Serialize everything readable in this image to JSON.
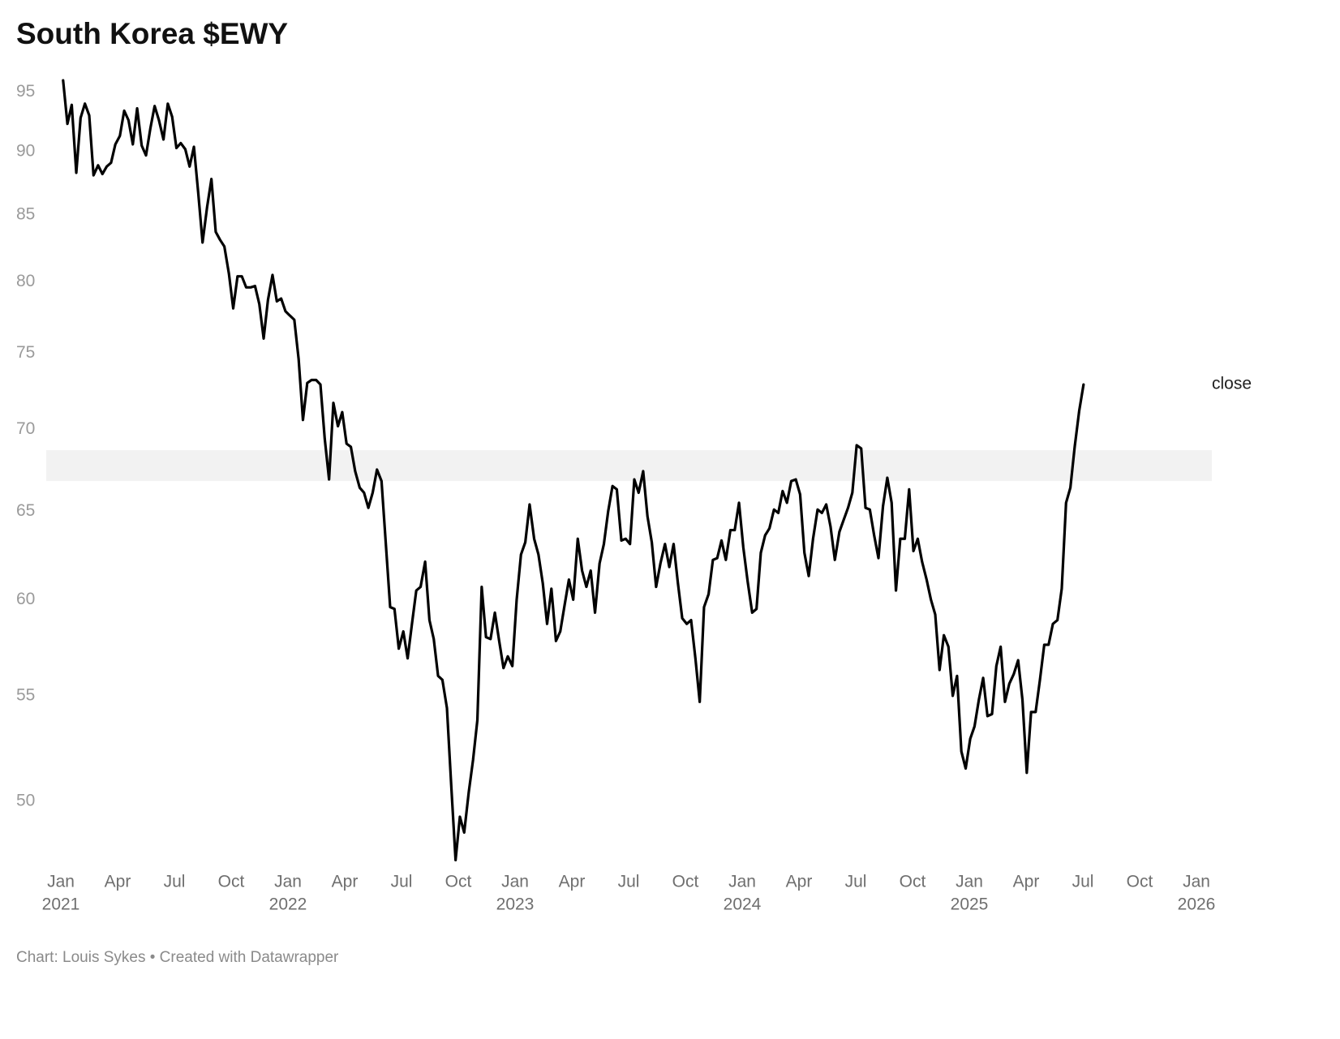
{
  "chart_data": {
    "type": "line",
    "title": "South Korea $EWY",
    "source": "Chart: Louis Sykes • Created with Datawrapper",
    "log_scale_y": true,
    "grid": false,
    "ylim": [
      47,
      97
    ],
    "yticks": [
      50,
      55,
      60,
      65,
      70,
      75,
      80,
      85,
      90,
      95
    ],
    "xlim": [
      2021,
      2026
    ],
    "xticks": [
      {
        "value": 2021,
        "label": "Jan",
        "year": "2021"
      },
      {
        "value": 2021.25,
        "label": "Apr"
      },
      {
        "value": 2021.5,
        "label": "Jul"
      },
      {
        "value": 2021.75,
        "label": "Oct"
      },
      {
        "value": 2022,
        "label": "Jan",
        "year": "2022"
      },
      {
        "value": 2022.25,
        "label": "Apr"
      },
      {
        "value": 2022.5,
        "label": "Jul"
      },
      {
        "value": 2022.75,
        "label": "Oct"
      },
      {
        "value": 2023,
        "label": "Jan",
        "year": "2023"
      },
      {
        "value": 2023.25,
        "label": "Apr"
      },
      {
        "value": 2023.5,
        "label": "Jul"
      },
      {
        "value": 2023.75,
        "label": "Oct"
      },
      {
        "value": 2024,
        "label": "Jan",
        "year": "2024"
      },
      {
        "value": 2024.25,
        "label": "Apr"
      },
      {
        "value": 2024.5,
        "label": "Jul"
      },
      {
        "value": 2024.75,
        "label": "Oct"
      },
      {
        "value": 2025,
        "label": "Jan",
        "year": "2025"
      },
      {
        "value": 2025.25,
        "label": "Apr"
      },
      {
        "value": 2025.5,
        "label": "Jul"
      },
      {
        "value": 2025.75,
        "label": "Oct"
      },
      {
        "value": 2026,
        "label": "Jan",
        "year": "2026"
      }
    ],
    "highlight_band": [
      66.8,
      68.7
    ],
    "highlight_color": "#f2f2f2",
    "x": [
      2021.01,
      2021.029,
      2021.048,
      2021.068,
      2021.087,
      2021.106,
      2021.125,
      2021.144,
      2021.164,
      2021.183,
      2021.202,
      2021.221,
      2021.24,
      2021.26,
      2021.279,
      2021.298,
      2021.317,
      2021.336,
      2021.356,
      2021.375,
      2021.394,
      2021.413,
      2021.432,
      2021.452,
      2021.471,
      2021.49,
      2021.509,
      2021.528,
      2021.548,
      2021.567,
      2021.586,
      2021.605,
      2021.624,
      2021.644,
      2021.663,
      2021.682,
      2021.701,
      2021.72,
      2021.74,
      2021.759,
      2021.778,
      2021.797,
      2021.816,
      2021.836,
      2021.855,
      2021.874,
      2021.893,
      2021.912,
      2021.932,
      2021.951,
      2021.97,
      2021.989,
      2022.008,
      2022.028,
      2022.047,
      2022.066,
      2022.085,
      2022.104,
      2022.124,
      2022.143,
      2022.162,
      2022.181,
      2022.2,
      2022.22,
      2022.239,
      2022.258,
      2022.277,
      2022.296,
      2022.316,
      2022.335,
      2022.354,
      2022.373,
      2022.392,
      2022.412,
      2022.431,
      2022.45,
      2022.469,
      2022.488,
      2022.508,
      2022.527,
      2022.546,
      2022.565,
      2022.584,
      2022.604,
      2022.623,
      2022.642,
      2022.661,
      2022.68,
      2022.7,
      2022.719,
      2022.738,
      2022.757,
      2022.776,
      2022.796,
      2022.815,
      2022.834,
      2022.853,
      2022.872,
      2022.892,
      2022.911,
      2022.93,
      2022.949,
      2022.968,
      2022.988,
      2023.007,
      2023.026,
      2023.045,
      2023.064,
      2023.084,
      2023.103,
      2023.122,
      2023.141,
      2023.16,
      2023.18,
      2023.199,
      2023.218,
      2023.237,
      2023.256,
      2023.276,
      2023.295,
      2023.314,
      2023.333,
      2023.352,
      2023.372,
      2023.391,
      2023.41,
      2023.429,
      2023.448,
      2023.468,
      2023.487,
      2023.506,
      2023.525,
      2023.544,
      2023.564,
      2023.583,
      2023.602,
      2023.621,
      2023.64,
      2023.66,
      2023.679,
      2023.698,
      2023.717,
      2023.736,
      2023.756,
      2023.775,
      2023.794,
      2023.813,
      2023.832,
      2023.852,
      2023.871,
      2023.89,
      2023.909,
      2023.928,
      2023.948,
      2023.967,
      2023.986,
      2024.005,
      2024.024,
      2024.044,
      2024.063,
      2024.082,
      2024.101,
      2024.12,
      2024.14,
      2024.159,
      2024.178,
      2024.197,
      2024.216,
      2024.236,
      2024.255,
      2024.274,
      2024.293,
      2024.312,
      2024.332,
      2024.351,
      2024.37,
      2024.389,
      2024.408,
      2024.428,
      2024.447,
      2024.466,
      2024.485,
      2024.504,
      2024.524,
      2024.543,
      2024.562,
      2024.581,
      2024.6,
      2024.62,
      2024.639,
      2024.658,
      2024.677,
      2024.696,
      2024.716,
      2024.735,
      2024.754,
      2024.773,
      2024.792,
      2024.812,
      2024.831,
      2024.85,
      2024.869,
      2024.888,
      2024.908,
      2024.927,
      2024.946,
      2024.965,
      2024.984,
      2025.004,
      2025.023,
      2025.042,
      2025.061,
      2025.08,
      2025.1,
      2025.119,
      2025.138,
      2025.157,
      2025.176,
      2025.196,
      2025.215,
      2025.234,
      2025.253,
      2025.272,
      2025.292,
      2025.311,
      2025.33,
      2025.349,
      2025.368,
      2025.388,
      2025.407,
      2025.426,
      2025.445,
      2025.464,
      2025.484,
      2025.503
    ],
    "series": [
      {
        "name": "close",
        "color": "#000000",
        "values": [
          96.0,
          92.3,
          93.9,
          88.3,
          92.8,
          94.0,
          93.0,
          88.1,
          88.9,
          88.2,
          88.8,
          89.1,
          90.6,
          91.3,
          93.4,
          92.6,
          90.6,
          93.6,
          90.5,
          89.7,
          91.9,
          93.8,
          92.6,
          91.0,
          94.0,
          92.9,
          90.3,
          90.7,
          90.2,
          88.8,
          90.4,
          86.7,
          82.9,
          85.6,
          87.8,
          83.7,
          83.1,
          82.6,
          80.6,
          78.1,
          80.4,
          80.4,
          79.6,
          79.6,
          79.7,
          78.4,
          76.0,
          78.7,
          80.5,
          78.6,
          78.8,
          77.9,
          77.6,
          77.3,
          74.6,
          70.6,
          73.0,
          73.2,
          73.2,
          72.9,
          69.4,
          66.9,
          71.7,
          70.2,
          71.1,
          69.1,
          68.9,
          67.4,
          66.4,
          66.1,
          65.2,
          66.1,
          67.5,
          66.8,
          63.1,
          59.6,
          59.5,
          57.4,
          58.3,
          56.9,
          58.7,
          60.5,
          60.7,
          62.1,
          58.9,
          57.9,
          56.0,
          55.8,
          54.4,
          50.7,
          47.4,
          49.3,
          48.6,
          50.4,
          51.9,
          53.8,
          60.7,
          58.0,
          57.9,
          59.3,
          57.8,
          56.4,
          57.0,
          56.5,
          60.0,
          62.5,
          63.2,
          65.4,
          63.4,
          62.5,
          60.9,
          58.7,
          60.6,
          57.8,
          58.3,
          59.7,
          61.1,
          60.0,
          63.4,
          61.6,
          60.7,
          61.6,
          59.3,
          62.0,
          63.1,
          65.0,
          66.5,
          66.3,
          63.3,
          63.4,
          63.1,
          66.9,
          66.1,
          67.4,
          64.7,
          63.2,
          60.7,
          62.0,
          63.1,
          61.8,
          63.1,
          60.9,
          59.0,
          58.7,
          58.9,
          56.9,
          54.7,
          59.6,
          60.3,
          62.2,
          62.3,
          63.3,
          62.2,
          63.9,
          63.9,
          65.5,
          62.9,
          61.0,
          59.3,
          59.5,
          62.6,
          63.6,
          64.0,
          65.1,
          64.9,
          66.2,
          65.5,
          66.8,
          66.9,
          66.0,
          62.6,
          61.3,
          63.4,
          65.1,
          64.9,
          65.4,
          64.1,
          62.2,
          63.8,
          64.5,
          65.2,
          66.1,
          69.0,
          68.8,
          65.2,
          65.1,
          63.6,
          62.3,
          65.3,
          67.0,
          65.5,
          60.5,
          63.4,
          63.4,
          66.3,
          62.7,
          63.4,
          62.1,
          61.1,
          60.0,
          59.2,
          56.3,
          58.1,
          57.5,
          55.0,
          56.0,
          52.3,
          51.5,
          52.9,
          53.5,
          54.8,
          55.9,
          54.0,
          54.1,
          56.5,
          57.5,
          54.7,
          55.6,
          56.1,
          56.8,
          54.8,
          51.3,
          54.2,
          54.2,
          55.8,
          57.6,
          57.6,
          58.7,
          58.9,
          60.6,
          65.5,
          66.4,
          68.9,
          71.2,
          72.9
        ]
      }
    ]
  }
}
